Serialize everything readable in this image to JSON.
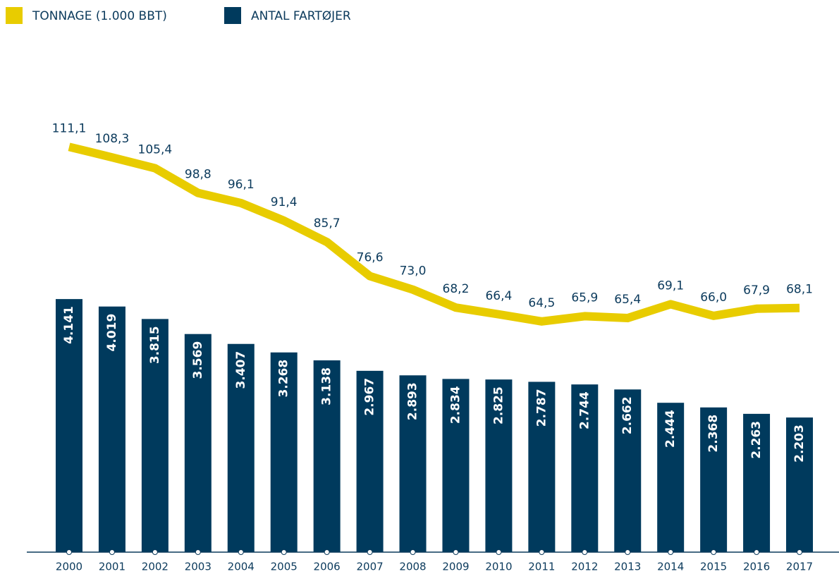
{
  "chart_data": {
    "type": "bar",
    "categories": [
      "2000",
      "2001",
      "2002",
      "2003",
      "2004",
      "2005",
      "2006",
      "2007",
      "2008",
      "2009",
      "2010",
      "2011",
      "2012",
      "2013",
      "2014",
      "2015",
      "2016",
      "2017"
    ],
    "series": [
      {
        "name": "TONNAGE (1.000 BBT)",
        "type": "line",
        "axis": "y2",
        "color": "#e8cc00",
        "values": [
          111.1,
          108.3,
          105.4,
          98.8,
          96.1,
          91.4,
          85.7,
          76.6,
          73.0,
          68.2,
          66.4,
          64.5,
          65.9,
          65.4,
          69.1,
          66.0,
          67.9,
          68.1
        ],
        "value_labels": [
          "111,1",
          "108,3",
          "105,4",
          "98,8",
          "96,1",
          "91,4",
          "85,7",
          "76,6",
          "73,0",
          "68,2",
          "66,4",
          "64,5",
          "65,9",
          "65,4",
          "69,1",
          "66,0",
          "67,9",
          "68,1"
        ]
      },
      {
        "name": "ANTAL FARTØJER",
        "type": "bar",
        "color": "#003a5d",
        "values": [
          4141,
          4019,
          3815,
          3569,
          3407,
          3268,
          3138,
          2967,
          2893,
          2834,
          2825,
          2787,
          2744,
          2662,
          2444,
          2368,
          2263,
          2203
        ],
        "value_labels": [
          "4.141",
          "4.019",
          "3.815",
          "3.569",
          "3.407",
          "3.268",
          "3.138",
          "2.967",
          "2.893",
          "2.834",
          "2.825",
          "2.787",
          "2.744",
          "2.662",
          "2.444",
          "2.368",
          "2.263",
          "2.203"
        ]
      }
    ],
    "ylim": [
      0,
      6000
    ],
    "y2lim": [
      40,
      120
    ],
    "legend": "top-left"
  }
}
